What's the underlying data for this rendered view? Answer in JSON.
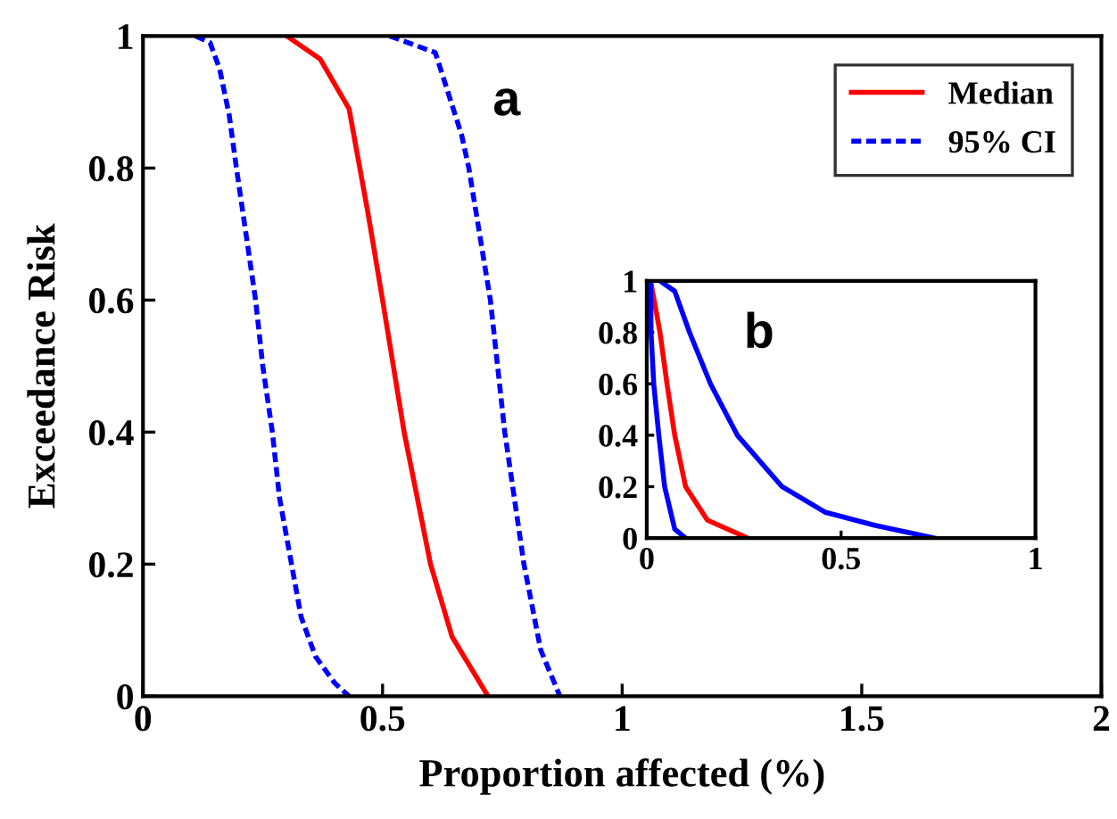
{
  "chart_data": [
    {
      "type": "line",
      "xlabel": "Proportion affected (%)",
      "ylabel": "Exceedance Risk",
      "xlim": [
        0,
        2
      ],
      "ylim": [
        0,
        1
      ],
      "xticks": [
        0,
        0.5,
        1,
        1.5,
        2
      ],
      "yticks": [
        0,
        0.2,
        0.4,
        0.6,
        0.8,
        1
      ],
      "grid": false,
      "legend": "top right",
      "annotations": [
        "a"
      ],
      "series": [
        {
          "name": "Median",
          "color": "#ff0000",
          "line_style": "solid",
          "x": [
            0.3,
            0.37,
            0.43,
            0.47,
            0.5,
            0.545,
            0.6,
            0.645,
            0.72
          ],
          "values": [
            1,
            0.965,
            0.89,
            0.73,
            0.6,
            0.4,
            0.2,
            0.09,
            0
          ]
        },
        {
          "name": "95% CI",
          "color": "#0000ff",
          "line_style": "dashed",
          "x": [
            0.11,
            0.14,
            0.16,
            0.18,
            0.195,
            0.215,
            0.235,
            0.25,
            0.27,
            0.285,
            0.31,
            0.33,
            0.36,
            0.4,
            0.43
          ],
          "values": [
            1,
            0.99,
            0.95,
            0.88,
            0.8,
            0.7,
            0.6,
            0.5,
            0.4,
            0.3,
            0.2,
            0.12,
            0.06,
            0.02,
            0
          ]
        },
        {
          "color": "#0000ff",
          "line_style": "dashed",
          "x": [
            0.515,
            0.61,
            0.665,
            0.68,
            0.725,
            0.755,
            0.795,
            0.83,
            0.87
          ],
          "values": [
            1,
            0.975,
            0.85,
            0.8,
            0.6,
            0.4,
            0.2,
            0.07,
            0
          ]
        }
      ]
    },
    {
      "type": "line",
      "xlim": [
        0,
        1
      ],
      "ylim": [
        0,
        1
      ],
      "xticks": [
        0,
        0.5,
        1
      ],
      "yticks": [
        0,
        0.2,
        0.4,
        0.6,
        0.8,
        1
      ],
      "grid": false,
      "annotations": [
        "b"
      ],
      "series": [
        {
          "color": "#ff0000",
          "line_style": "solid",
          "x": [
            0.01,
            0.034,
            0.052,
            0.072,
            0.1,
            0.156,
            0.26
          ],
          "values": [
            1,
            0.8,
            0.6,
            0.4,
            0.2,
            0.07,
            0
          ]
        },
        {
          "color": "#0000ff",
          "line_style": "solid",
          "x": [
            0.01,
            0.011,
            0.018,
            0.031,
            0.046,
            0.072,
            0.1
          ],
          "values": [
            1,
            0.8,
            0.6,
            0.4,
            0.2,
            0.035,
            0
          ]
        },
        {
          "color": "#0000ff",
          "line_style": "solid",
          "x": [
            0.034,
            0.072,
            0.11,
            0.164,
            0.233,
            0.348,
            0.46,
            0.586,
            0.74
          ],
          "values": [
            1,
            0.96,
            0.8,
            0.6,
            0.4,
            0.2,
            0.1,
            0.05,
            0
          ]
        }
      ]
    }
  ]
}
